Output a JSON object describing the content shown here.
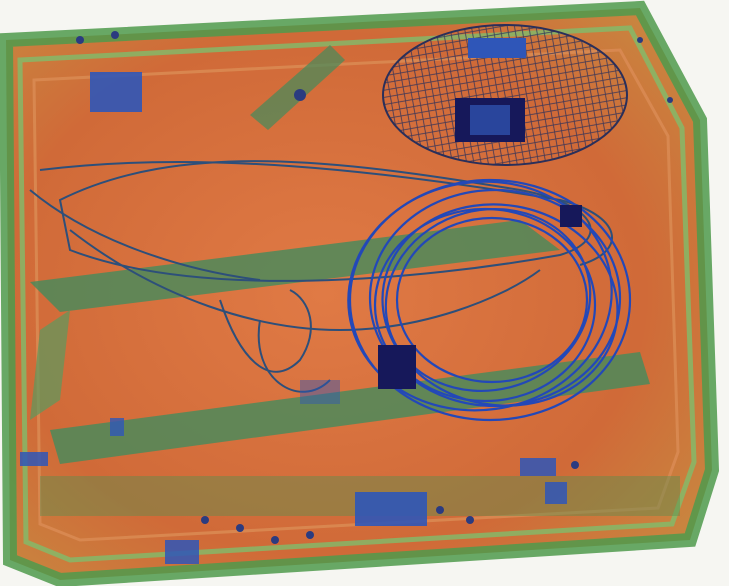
{
  "scan": {
    "palette": {
      "background": "#f6f6f2",
      "organic": "#d9713d",
      "organic_dark": "#b8532a",
      "mixed": "#5f9a5a",
      "mixed_light": "#8fc07a",
      "metal": "#2f56b8",
      "metal_dense": "#141a4a"
    }
  }
}
